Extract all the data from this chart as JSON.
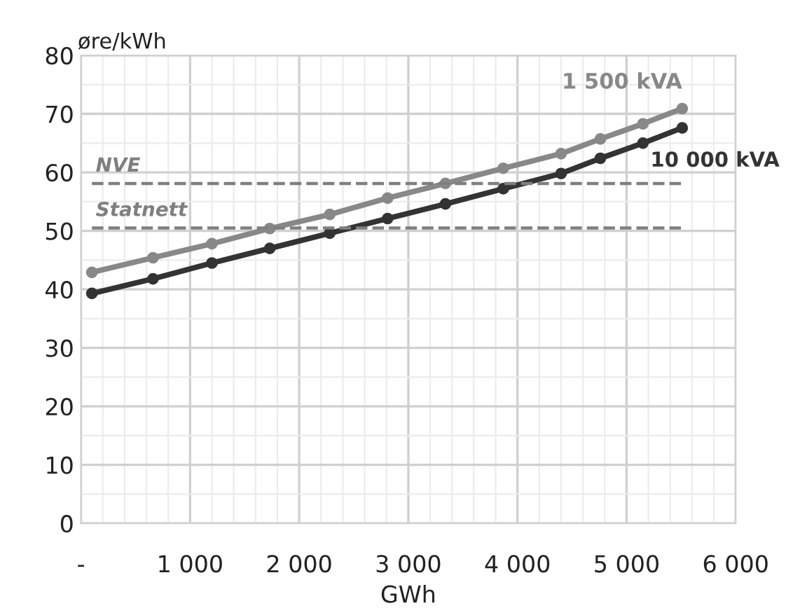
{
  "chart_data": {
    "type": "line",
    "ylabel": "øre/kWh",
    "xlabel": "GWh",
    "xlim": [
      0,
      6000
    ],
    "xticks": [
      {
        "value": 0,
        "label": "-"
      },
      {
        "value": 1000,
        "label": "1 000"
      },
      {
        "value": 2000,
        "label": "2 000"
      },
      {
        "value": 3000,
        "label": "3 000"
      },
      {
        "value": 4000,
        "label": "4 000"
      },
      {
        "value": 5000,
        "label": "5 000"
      },
      {
        "value": 6000,
        "label": "6 000"
      }
    ],
    "ylim": [
      0,
      80
    ],
    "yticks": [
      0,
      10,
      20,
      30,
      40,
      50,
      60,
      70,
      80
    ],
    "grid": true,
    "marker": "circle",
    "line_style": "solid",
    "series": [
      {
        "name": "1 500 kVA",
        "color": "#888888",
        "x": [
          100,
          660,
          1200,
          1730,
          2280,
          2810,
          3340,
          3870,
          4400,
          4760,
          5150,
          5510
        ],
        "values": [
          42.9,
          45.4,
          47.8,
          50.4,
          52.8,
          55.6,
          58.1,
          60.7,
          63.2,
          65.7,
          68.3,
          70.9
        ]
      },
      {
        "name": "10 000 kVA",
        "color": "#333333",
        "x": [
          100,
          660,
          1200,
          1730,
          2280,
          2810,
          3340,
          3870,
          4400,
          4760,
          5150,
          5510
        ],
        "values": [
          39.3,
          41.8,
          44.5,
          47.0,
          49.6,
          52.1,
          54.6,
          57.2,
          59.8,
          62.4,
          65.0,
          67.6
        ]
      }
    ],
    "ref_lines": [
      {
        "axis": "y",
        "value": 58.1,
        "label": "NVE",
        "color": "#7f7f7f",
        "line_style": "dashed"
      },
      {
        "axis": "y",
        "value": 50.5,
        "label": "Statnett",
        "color": "#7f7f7f",
        "line_style": "dashed"
      }
    ]
  }
}
